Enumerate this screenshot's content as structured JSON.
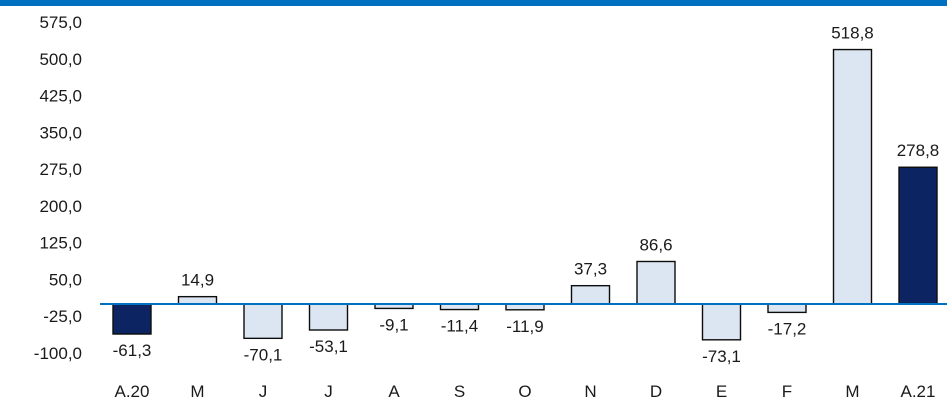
{
  "colors": {
    "top_bar": "#0070C0",
    "bar_light": "#DCE6F2",
    "bar_dark": "#0C2461",
    "bar_stroke": "#0d0d0d",
    "baseline": "#0070C0"
  },
  "chart_data": {
    "type": "bar",
    "title": "",
    "xlabel": "",
    "ylabel": "",
    "categories": [
      "A.20",
      "M",
      "J",
      "J",
      "A",
      "S",
      "O",
      "N",
      "D",
      "E",
      "F",
      "M",
      "A.21"
    ],
    "values": [
      -61.3,
      14.9,
      -70.1,
      -53.1,
      -9.1,
      -11.4,
      -11.9,
      37.3,
      86.6,
      -73.1,
      -17.2,
      518.8,
      278.8
    ],
    "value_labels": [
      "-61,3",
      "14,9",
      "-70,1",
      "-53,1",
      "-9,1",
      "-11,4",
      "-11,9",
      "37,3",
      "86,6",
      "-73,1",
      "-17,2",
      "518,8",
      "278,8"
    ],
    "highlight": [
      true,
      false,
      false,
      false,
      false,
      false,
      false,
      false,
      false,
      false,
      false,
      false,
      true
    ],
    "y_ticks": [
      575,
      500,
      425,
      350,
      275,
      200,
      125,
      50,
      -25,
      -100
    ],
    "y_tick_labels": [
      "575,0",
      "500,0",
      "425,0",
      "350,0",
      "275,0",
      "200,0",
      "125,0",
      "50,0",
      "-25,0",
      "-100,0"
    ],
    "ylim": [
      -100,
      575
    ],
    "grid": false,
    "legend": "none"
  }
}
